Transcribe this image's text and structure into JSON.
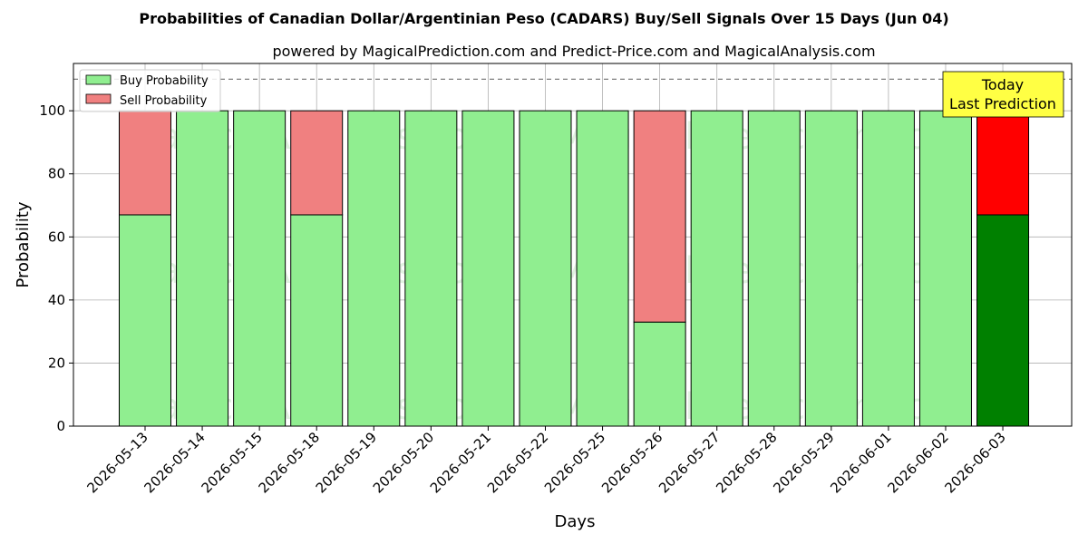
{
  "chart_data": {
    "type": "bar",
    "stacked": true,
    "title": "Probabilities of Canadian Dollar/Argentinian Peso (CADARS) Buy/Sell Signals Over 15 Days (Jun 04)",
    "subtitle": "powered by MagicalPrediction.com and Predict-Price.com and MagicalAnalysis.com",
    "xlabel": "Days",
    "ylabel": "Probability",
    "ylim": [
      0,
      115
    ],
    "yticks": [
      "0",
      "20",
      "40",
      "60",
      "80",
      "100"
    ],
    "grid": true,
    "legend_position": "top-left",
    "reference_line": 110,
    "categories": [
      "2026-05-13",
      "2026-05-14",
      "2026-05-15",
      "2026-05-18",
      "2026-05-19",
      "2026-05-20",
      "2026-05-21",
      "2026-05-22",
      "2026-05-25",
      "2026-05-26",
      "2026-05-27",
      "2026-05-28",
      "2026-05-29",
      "2026-06-01",
      "2026-06-02",
      "2026-06-03"
    ],
    "series": [
      {
        "name": "Buy Probability",
        "color": "#90ee90",
        "highlight_color": "#008000",
        "values": [
          67,
          100,
          100,
          67,
          100,
          100,
          100,
          100,
          100,
          33,
          100,
          100,
          100,
          100,
          100,
          67
        ]
      },
      {
        "name": "Sell Probability",
        "color": "#f08080",
        "highlight_color": "#ff0000",
        "values": [
          33,
          0,
          0,
          33,
          0,
          0,
          0,
          0,
          0,
          67,
          0,
          0,
          0,
          0,
          0,
          33
        ]
      }
    ],
    "highlight_index": 15,
    "annotation": {
      "line1": "Today",
      "line2": "Last Prediction",
      "color": "#ffff44"
    },
    "watermarks": [
      "MagicalAnalysis.com",
      "MagicalPrediction.com"
    ]
  }
}
